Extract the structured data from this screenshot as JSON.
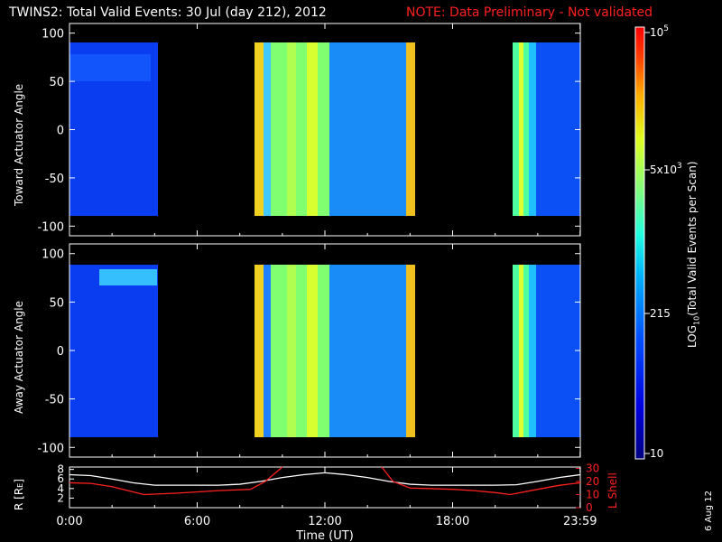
{
  "header": {
    "title": "TWINS2: Total Valid Events: 30 Jul (day 212), 2012",
    "note": "NOTE: Data Preliminary - Not validated"
  },
  "panels": {
    "top": {
      "ylabel": "Toward Actuator Angle",
      "yticks": [
        "100",
        "50",
        "0",
        "-50",
        "-100"
      ]
    },
    "middle": {
      "ylabel": "Away Actuator Angle",
      "yticks": [
        "100",
        "50",
        "0",
        "-50",
        "-100"
      ]
    },
    "bottom": {
      "ylabel_left": "R [R",
      "ylabel_left_sub": "E",
      "ylabel_left_close": "]",
      "ylabel_right": "L Shell",
      "yticks_left": [
        "8",
        "6",
        "4",
        "2"
      ],
      "yticks_right": [
        "30",
        "20",
        "10",
        "0"
      ]
    }
  },
  "xaxis": {
    "label": "Time (UT)",
    "ticks": [
      "0:00",
      "6:00",
      "12:00",
      "18:00",
      "23:59"
    ]
  },
  "colorbar": {
    "label_main": "LOG",
    "label_sub": "10",
    "label_rest": "(Total Valid Events per Scan)",
    "ticks": [
      {
        "base": "10",
        "exp": "5"
      },
      {
        "base": "5x10",
        "exp": "3"
      },
      {
        "base": "215",
        "exp": ""
      },
      {
        "base": "10",
        "exp": ""
      }
    ]
  },
  "footer": {
    "date": "6 Aug 12"
  },
  "colors": {
    "note": "#ff2020",
    "r_line": "#ffffff",
    "lshell_line": "#ff2020",
    "background": "#000000"
  },
  "chart_data": [
    {
      "type": "heatmap",
      "title": "Toward Actuator Angle",
      "xlabel": "Time (UT)",
      "ylabel": "Toward Actuator Angle",
      "xlim": [
        0,
        24
      ],
      "ylim": [
        -110,
        110
      ],
      "colorscale": "log, 10 to 1e5",
      "data_blocks_hours": [
        [
          0,
          3.75
        ],
        [
          8.5,
          16.3
        ],
        [
          20.7,
          23.99
        ]
      ],
      "angle_range": [
        -88,
        90
      ]
    },
    {
      "type": "heatmap",
      "title": "Away Actuator Angle",
      "xlabel": "Time (UT)",
      "ylabel": "Away Actuator Angle",
      "xlim": [
        0,
        24
      ],
      "ylim": [
        -110,
        110
      ],
      "colorscale": "log, 10 to 1e5",
      "data_blocks_hours": [
        [
          0,
          3.75
        ],
        [
          8.5,
          16.3
        ],
        [
          20.7,
          23.99
        ]
      ],
      "angle_range": [
        -88,
        90
      ]
    },
    {
      "type": "line",
      "xlabel": "Time (UT)",
      "ylabel": "R [RE]",
      "xlim": [
        0,
        24
      ],
      "ylim": [
        0,
        8
      ],
      "series": [
        {
          "name": "R",
          "axis": "left",
          "x": [
            0,
            1,
            2,
            3,
            4,
            5,
            6,
            7,
            8,
            9,
            10,
            11,
            12,
            13,
            14,
            15,
            16,
            17,
            18,
            19,
            20,
            21,
            22,
            23,
            24
          ],
          "values": [
            6.9,
            6.7,
            6.0,
            5.2,
            4.7,
            4.7,
            4.7,
            4.7,
            4.9,
            5.5,
            6.3,
            6.9,
            7.3,
            6.9,
            6.3,
            5.5,
            4.9,
            4.7,
            4.7,
            4.7,
            4.7,
            4.8,
            5.5,
            6.3,
            6.9
          ]
        },
        {
          "name": "L Shell",
          "axis": "right",
          "ylim": [
            0,
            30
          ],
          "x": [
            0,
            1,
            2,
            3,
            3.5,
            5,
            7,
            8.5,
            9.2,
            10,
            14.5,
            15.2,
            16,
            17,
            18,
            19,
            20,
            20.7,
            22,
            23,
            24
          ],
          "values": [
            19,
            18.5,
            16,
            12,
            10,
            11,
            13,
            14,
            20,
            31,
            31,
            20,
            15,
            14.5,
            14,
            13,
            11.5,
            10,
            14,
            17,
            19
          ]
        }
      ]
    }
  ]
}
